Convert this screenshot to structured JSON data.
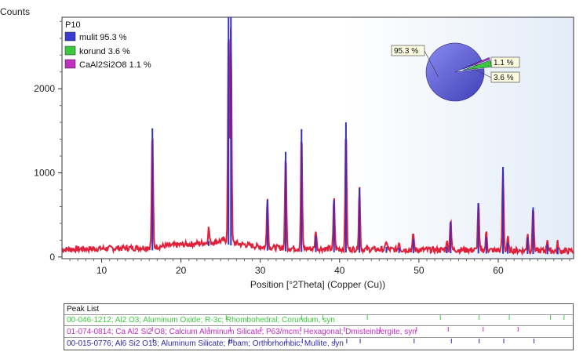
{
  "chart_data": {
    "type": "line",
    "ylabel": "Counts",
    "xlabel": "Position [°2Theta] (Copper (Cu))",
    "xlim": [
      5,
      69.5
    ],
    "ylim": [
      -20,
      2850
    ],
    "x_ticks": [
      "10",
      "20",
      "30",
      "40",
      "50",
      "60"
    ],
    "y_ticks": [
      "0",
      "1000",
      "2000"
    ],
    "x_tick_values": [
      10,
      20,
      30,
      40,
      50,
      60
    ],
    "y_tick_values": [
      0,
      1000,
      2000
    ],
    "sample_name": "P10",
    "legend": [
      {
        "label": "mulit 95.3 %",
        "color": "#3a3ad0"
      },
      {
        "label": "korund 3.6 %",
        "color": "#3cc83c"
      },
      {
        "label": "CaAl2Si2O8 1.1 %",
        "color": "#c030c0"
      }
    ],
    "pie": {
      "slices": [
        {
          "label": "95.3 %",
          "value": 95.3,
          "color": "#5a5ad8"
        },
        {
          "label": "1.1 %",
          "value": 1.1,
          "color": "#c030c0"
        },
        {
          "label": "3.6 %",
          "value": 3.6,
          "color": "#3cc83c"
        }
      ]
    },
    "baseline": {
      "points": [
        [
          5,
          90
        ],
        [
          10,
          100
        ],
        [
          15,
          110
        ],
        [
          18,
          130
        ],
        [
          22,
          160
        ],
        [
          24,
          175
        ],
        [
          25.5,
          200
        ],
        [
          27,
          160
        ],
        [
          30,
          120
        ],
        [
          35,
          100
        ],
        [
          40,
          95
        ],
        [
          45,
          90
        ],
        [
          50,
          85
        ],
        [
          55,
          85
        ],
        [
          60,
          80
        ],
        [
          65,
          75
        ],
        [
          69.5,
          70
        ]
      ],
      "color": "#e0203a"
    },
    "peaks": [
      {
        "x": 16.4,
        "y": 1530
      },
      {
        "x": 23.5,
        "y": 190
      },
      {
        "x": 26.0,
        "y": 2850
      },
      {
        "x": 26.3,
        "y": 2850
      },
      {
        "x": 30.9,
        "y": 680
      },
      {
        "x": 33.2,
        "y": 1250
      },
      {
        "x": 35.2,
        "y": 1520
      },
      {
        "x": 37.0,
        "y": 250
      },
      {
        "x": 39.3,
        "y": 680
      },
      {
        "x": 40.8,
        "y": 1600
      },
      {
        "x": 42.5,
        "y": 820
      },
      {
        "x": 45.9,
        "y": 120
      },
      {
        "x": 47.5,
        "y": 110
      },
      {
        "x": 49.3,
        "y": 210
      },
      {
        "x": 53.5,
        "y": 120
      },
      {
        "x": 54.0,
        "y": 420
      },
      {
        "x": 57.5,
        "y": 640
      },
      {
        "x": 58.5,
        "y": 240
      },
      {
        "x": 60.6,
        "y": 1070
      },
      {
        "x": 61.2,
        "y": 170
      },
      {
        "x": 63.7,
        "y": 230
      },
      {
        "x": 64.4,
        "y": 590
      },
      {
        "x": 66.2,
        "y": 150
      },
      {
        "x": 67.5,
        "y": 110
      }
    ],
    "peak_color": "#3030c8"
  },
  "peak_list": {
    "title": "Peak List",
    "rows": [
      {
        "text": "00-046-1212; Al2 O3; Aluminum Oxide; R-3c; Rhombohedral; Corundum, syn",
        "color": "#3ccc3c"
      },
      {
        "text": "01-074-0814; Ca Al2 Si2 O8; Calcium Aluminum Silicate; P63/mcm; Hexagonal; Dmisteinbergite, syn",
        "color": "#c030c0"
      },
      {
        "text": "00-015-0776; Al6 Si2 O13; Aluminum Silicate; Pbam; Orthorhombic; Mullite, syn",
        "color": "#2a2aa8"
      }
    ],
    "sticks": {
      "row_0": [
        25.6,
        35.1,
        37.8,
        43.4,
        52.6,
        57.5,
        61.3,
        66.5,
        68.2
      ],
      "row_1": [
        16.3,
        23.4,
        26.1,
        30.0,
        35.0,
        40.5,
        45.0,
        49.6,
        53.6,
        58.0,
        62.4
      ],
      "row_2": [
        16.4,
        26.0,
        26.3,
        30.9,
        33.2,
        35.2,
        39.3,
        40.8,
        42.5,
        49.3,
        54.0,
        57.5,
        60.6,
        64.4
      ]
    }
  }
}
